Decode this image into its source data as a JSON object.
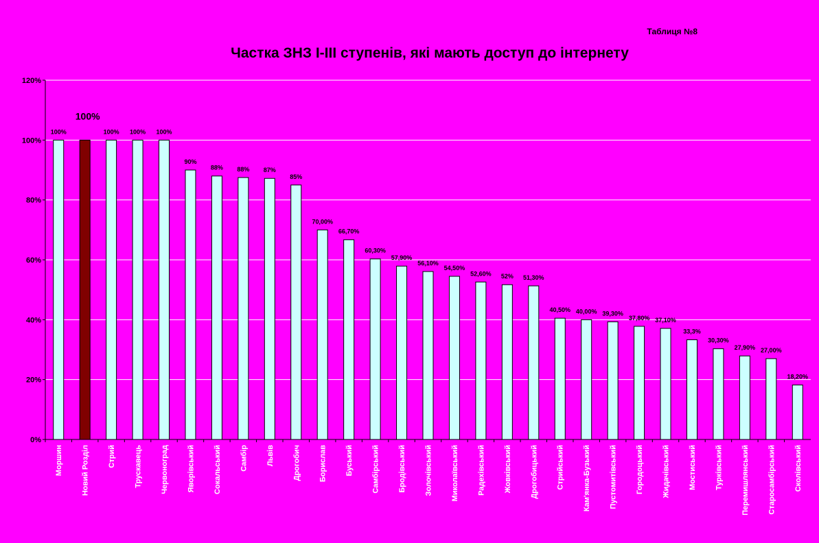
{
  "chart_data": {
    "type": "bar",
    "table_note": "Таблиця №8",
    "title": "Частка  ЗНЗ І-ІІІ ступенів, які мають доступ до інтернету",
    "xlabel": "",
    "ylabel": "",
    "ylim": [
      0,
      120
    ],
    "yticks": [
      0,
      20,
      40,
      60,
      80,
      100,
      120
    ],
    "ytick_labels": [
      "0%",
      "20%",
      "40%",
      "60%",
      "80%",
      "100%",
      "120%"
    ],
    "grid": true,
    "legend": "none",
    "categories": [
      "Моршин",
      "Новий Розділ",
      "Стрий",
      "Трускавець",
      "Червоноград",
      "Яворівський",
      "Сокальський",
      "Самбір",
      "Львів",
      "Дрогобич",
      "Борислав",
      "Буський",
      "Самбірський",
      "Бродівський",
      "Золочівський",
      "Миколаївський",
      "Радехівський",
      "Жовківський",
      "Дрогобицький",
      "Стрийський",
      "Кам'янка-Бузький",
      "Пустомитівський",
      "Городоцький",
      "Жидачівський",
      "Мостиський",
      "Турківський",
      "Перемишлянський",
      "Старосамбірський",
      "Сколівський"
    ],
    "values": [
      100,
      100,
      100,
      100,
      100,
      90,
      88,
      87.5,
      87.2,
      85,
      70,
      66.7,
      60.3,
      57.9,
      56.1,
      54.5,
      52.6,
      51.7,
      51.3,
      40.5,
      40,
      39.3,
      37.8,
      37.1,
      33.3,
      30.3,
      27.9,
      27,
      18.2
    ],
    "data_labels": [
      "100%",
      "",
      "100%",
      "100%",
      "100%",
      "90%",
      "88%",
      "88%",
      "87%",
      "85%",
      "70,00%",
      "66,70%",
      "60,30%",
      "57,90%",
      "56,10%",
      "54,50%",
      "52,60%",
      "52%",
      "51,30%",
      "40,50%",
      "40,00%",
      "39,30%",
      "37,80%",
      "37,10%",
      "33,3%",
      "30,30%",
      "27,90%",
      "27,00%",
      "18,20%"
    ],
    "highlight": {
      "index": 1,
      "label": "100%",
      "color": "#800000"
    },
    "bar_color": "#ccffff",
    "gridline_color": "#ffffff",
    "background_color": "#ff00ff"
  }
}
